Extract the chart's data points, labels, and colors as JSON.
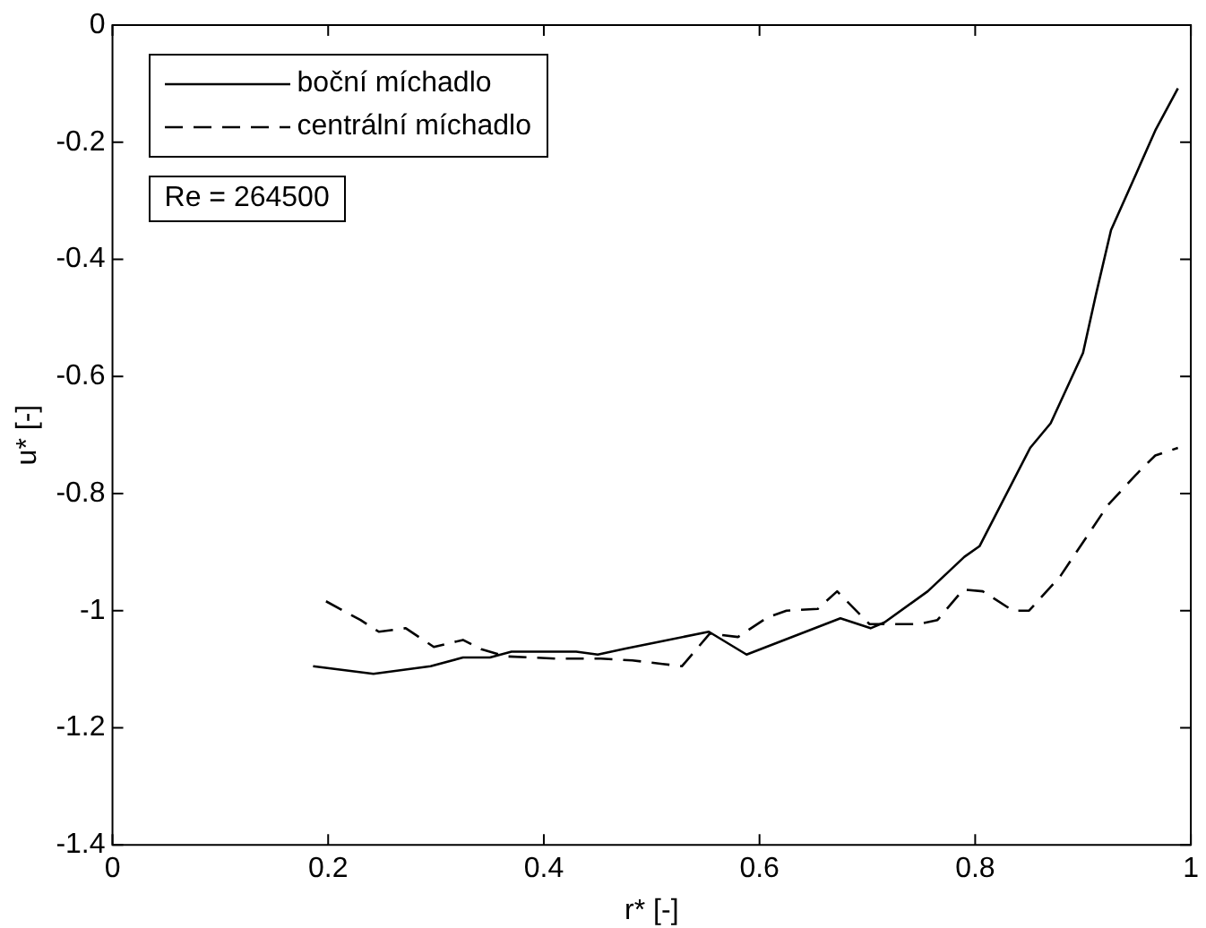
{
  "chart_data": {
    "type": "line",
    "xlabel": "r* [-]",
    "ylabel": "u* [-]",
    "xlim": [
      0,
      1
    ],
    "ylim": [
      -1.4,
      0
    ],
    "xticks": [
      0,
      0.2,
      0.4,
      0.6,
      0.8,
      1
    ],
    "yticks": [
      -1.4,
      -1.2,
      -1,
      -0.8,
      -0.6,
      -0.4,
      -0.2,
      0
    ],
    "grid": false,
    "legend": "top left",
    "marker": "none",
    "annotations": [
      "Re = 264500"
    ],
    "series": [
      {
        "name": "boční míchadlo",
        "color": "#000000",
        "line_style": "solid",
        "x": [
          0.186,
          0.242,
          0.295,
          0.325,
          0.35,
          0.37,
          0.43,
          0.45,
          0.475,
          0.51,
          0.553,
          0.588,
          0.675,
          0.703,
          0.716,
          0.756,
          0.79,
          0.804,
          0.851,
          0.87,
          0.9,
          0.912,
          0.926,
          0.949,
          0.967,
          0.988
        ],
        "values": [
          -1.095,
          -1.108,
          -1.095,
          -1.08,
          -1.08,
          -1.07,
          -1.07,
          -1.075,
          -1.065,
          -1.052,
          -1.036,
          -1.075,
          -1.013,
          -1.03,
          -1.02,
          -0.967,
          -0.908,
          -0.89,
          -0.722,
          -0.68,
          -0.56,
          -0.46,
          -0.35,
          -0.255,
          -0.18,
          -0.108
        ]
      },
      {
        "name": "centrální míchadlo",
        "color": "#000000",
        "line_style": "dashed",
        "x": [
          0.198,
          0.23,
          0.247,
          0.272,
          0.298,
          0.325,
          0.342,
          0.365,
          0.412,
          0.453,
          0.482,
          0.51,
          0.528,
          0.554,
          0.58,
          0.607,
          0.625,
          0.654,
          0.672,
          0.702,
          0.747,
          0.765,
          0.789,
          0.807,
          0.835,
          0.85,
          0.879,
          0.891,
          0.923,
          0.949,
          0.967,
          0.988
        ],
        "values": [
          -0.984,
          -1.016,
          -1.036,
          -1.03,
          -1.062,
          -1.05,
          -1.066,
          -1.078,
          -1.082,
          -1.082,
          -1.085,
          -1.091,
          -1.095,
          -1.039,
          -1.045,
          -1.012,
          -1.0,
          -0.997,
          -0.967,
          -1.023,
          -1.023,
          -1.016,
          -0.964,
          -0.967,
          -1.0,
          -1.0,
          -0.941,
          -0.908,
          -0.82,
          -0.768,
          -0.735,
          -0.722
        ]
      }
    ]
  }
}
